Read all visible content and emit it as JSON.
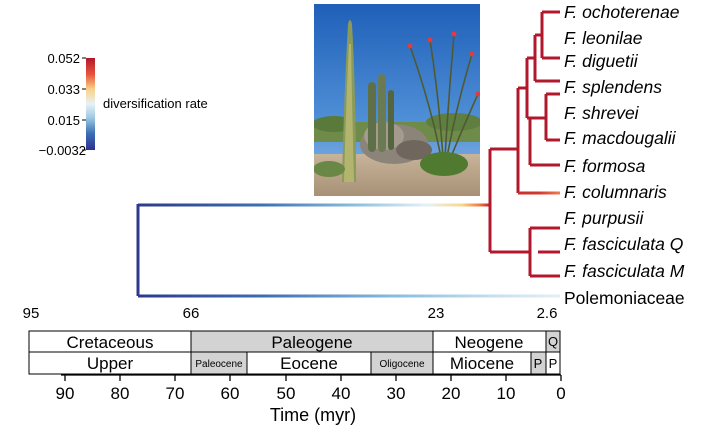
{
  "legend": {
    "title": "diversification rate",
    "ticks": [
      "0.052",
      "0.033",
      "0.015",
      "−0.0032"
    ],
    "gradient_colors": [
      "#b2182b",
      "#e8553b",
      "#f9d28a",
      "#e7f1f6",
      "#9ec9e2",
      "#3b6fb6",
      "#2d2f8f"
    ]
  },
  "taxa": [
    "F. ochoterenae",
    "F. leonilae",
    "F. diguetii",
    "F. splendens",
    "F. shrevei",
    "F. macdougalii",
    "F. formosa",
    "F. columnaris",
    "F. purpusii",
    "F. fasciculata Q",
    "F. fasciculata M",
    "Polemoniaceae"
  ],
  "node_ages": [
    "95",
    "66",
    "23",
    "2.6"
  ],
  "timescale": {
    "eras": [
      "Cretaceous",
      "Paleogene",
      "Neogene",
      "Q"
    ],
    "epochs": [
      "Upper",
      "Paleocene",
      "Eocene",
      "Oligocene",
      "Miocene",
      "P",
      "P"
    ],
    "ticks": [
      "90",
      "80",
      "70",
      "60",
      "50",
      "40",
      "30",
      "20",
      "10",
      "0"
    ],
    "axis_label": "Time (myr)"
  },
  "photo": {
    "icon": "desert-ocotillo-boojum-photo"
  },
  "colors": {
    "clade_red": "#b2182b",
    "period_fill": "#d3d3d3"
  }
}
